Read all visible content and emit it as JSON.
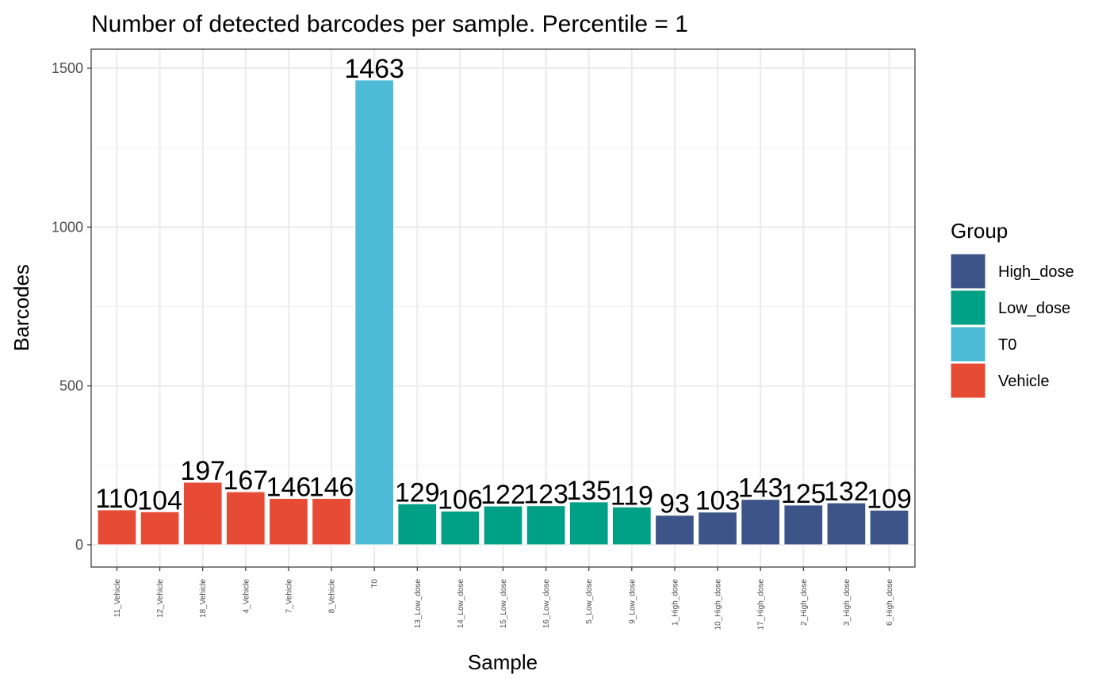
{
  "chart_data": {
    "type": "bar",
    "title": "Number of detected barcodes per sample. Percentile = 1",
    "xlabel": "Sample",
    "ylabel": "Barcodes",
    "ylim": [
      -70,
      1560
    ],
    "yticks": [
      0,
      500,
      1000,
      1500
    ],
    "grid": true,
    "legend": {
      "title": "Group",
      "position": "right",
      "entries": [
        {
          "name": "High_dose",
          "color": "#3C5488"
        },
        {
          "name": "Low_dose",
          "color": "#00A087"
        },
        {
          "name": "T0",
          "color": "#4DBBD5"
        },
        {
          "name": "Vehicle",
          "color": "#E64B35"
        }
      ]
    },
    "categories": [
      "11_Vehicle",
      "12_Vehicle",
      "18_Vehicle",
      "4_Vehicle",
      "7_Vehicle",
      "8_Vehicle",
      "T0",
      "13_Low_dose",
      "14_Low_dose",
      "15_Low_dose",
      "16_Low_dose",
      "5_Low_dose",
      "9_Low_dose",
      "1_High_dose",
      "10_High_dose",
      "17_High_dose",
      "2_High_dose",
      "3_High_dose",
      "6_High_dose"
    ],
    "values": [
      110,
      104,
      197,
      167,
      146,
      146,
      1463,
      129,
      106,
      122,
      123,
      135,
      119,
      93,
      103,
      143,
      125,
      132,
      109
    ],
    "groups": [
      "Vehicle",
      "Vehicle",
      "Vehicle",
      "Vehicle",
      "Vehicle",
      "Vehicle",
      "T0",
      "Low_dose",
      "Low_dose",
      "Low_dose",
      "Low_dose",
      "Low_dose",
      "Low_dose",
      "High_dose",
      "High_dose",
      "High_dose",
      "High_dose",
      "High_dose",
      "High_dose"
    ]
  }
}
